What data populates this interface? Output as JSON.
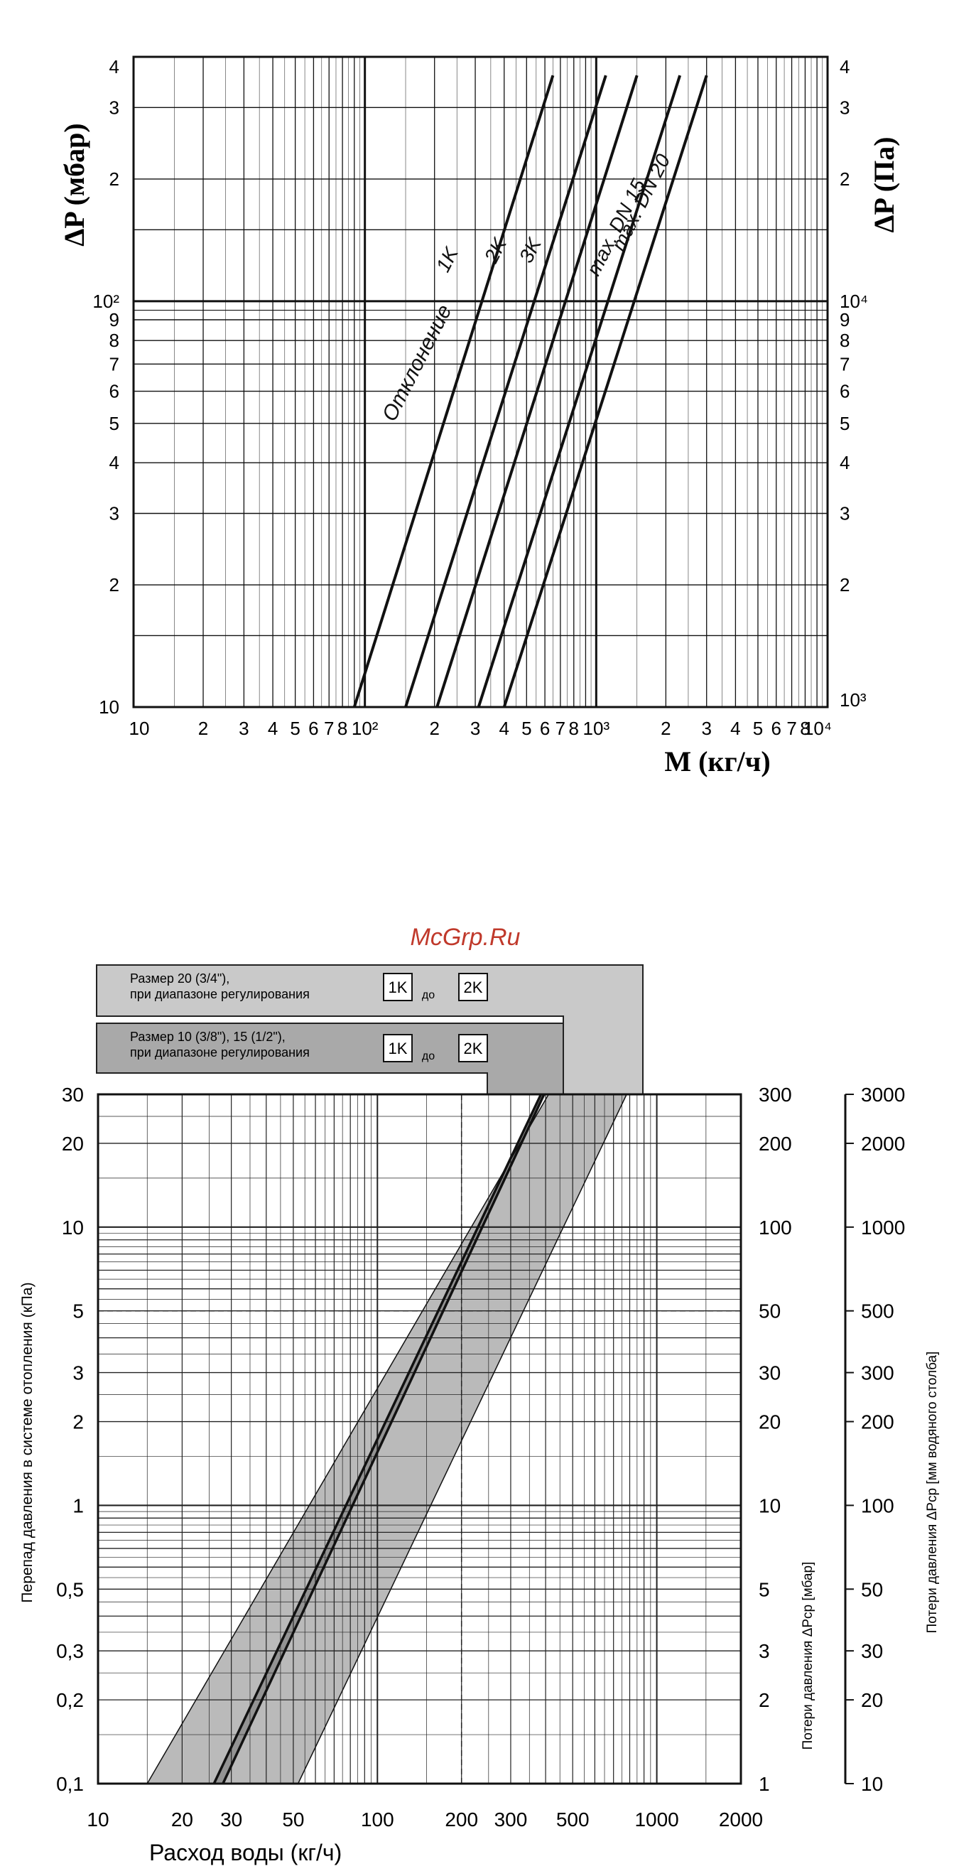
{
  "watermark": "McGrp.Ru",
  "chart_data": [
    {
      "type": "line",
      "scale": "log-log",
      "ylabel_left": "ΔP (мбар)",
      "ylabel_right": "ΔP (Па)",
      "xlabel": "M (кг/ч)",
      "xlim": [
        10,
        10000
      ],
      "ylim_mbar": [
        10,
        400
      ],
      "grid": true,
      "x_ticks": [
        "10",
        "2",
        "3",
        "4",
        "5",
        "6",
        "7",
        "8",
        "10²",
        "2",
        "3",
        "4",
        "5",
        "6",
        "7",
        "8",
        "10³",
        "2",
        "3",
        "4",
        "5",
        "6",
        "7",
        "8",
        "10⁴"
      ],
      "y_ticks_left": [
        "10",
        "2",
        "3",
        "4",
        "5",
        "6",
        "7",
        "8",
        "9",
        "10²",
        "2",
        "3",
        "4"
      ],
      "y_ticks_right": [
        "10³",
        "2",
        "3",
        "4",
        "5",
        "6",
        "7",
        "8",
        "9",
        "10⁴",
        "2",
        "3",
        "4"
      ],
      "group_label": "Отклонение",
      "series": [
        {
          "name": "1K",
          "x": [
            90,
            650
          ],
          "y": [
            10,
            360
          ]
        },
        {
          "name": "2K",
          "x": [
            150,
            1100
          ],
          "y": [
            10,
            360
          ]
        },
        {
          "name": "3K",
          "x": [
            205,
            1500
          ],
          "y": [
            10,
            360
          ]
        },
        {
          "name": "max. DN 15",
          "x": [
            310,
            2300
          ],
          "y": [
            10,
            360
          ]
        },
        {
          "name": "max. DN 20",
          "x": [
            400,
            3000
          ],
          "y": [
            10,
            360
          ]
        }
      ]
    },
    {
      "type": "area",
      "scale": "log-log",
      "xlabel": "Расход воды  (кг/ч)",
      "ylabel_left": "Перепад  давления в системе отопления (кПа)",
      "ylabel_right_1": "Потери давления ΔPср [мбар]",
      "ylabel_right_2": "Потери давления ΔPср [мм водяного столба]",
      "xlim": [
        10,
        2000
      ],
      "ylim_kpa": [
        0.1,
        30
      ],
      "grid": true,
      "x_ticks": [
        "10",
        "20",
        "30",
        "50",
        "100",
        "200",
        "300",
        "500",
        "1000",
        "2000"
      ],
      "y_ticks_left": [
        "0,1",
        "0,2",
        "0,3",
        "0,5",
        "1",
        "2",
        "3",
        "5",
        "10",
        "20",
        "30"
      ],
      "y_ticks_right_1": [
        "1",
        "2",
        "3",
        "5",
        "10",
        "20",
        "30",
        "50",
        "100",
        "200",
        "300"
      ],
      "y_ticks_right_2": [
        "10",
        "20",
        "30",
        "50",
        "100",
        "200",
        "300",
        "500",
        "1000",
        "2000",
        "3000"
      ],
      "box_1": {
        "line1": "Размер 20 (3/4\"),",
        "line2": "при диапазоне регулирования",
        "from": "1K",
        "to_word": "до",
        "to": "2K"
      },
      "box_2": {
        "line1": "Размер 10 (3/8\"),   15 (1/2\"),",
        "line2": "при диапазоне регулирования",
        "from": "1K",
        "to_word": "до",
        "to": "2K"
      },
      "bands": [
        {
          "label": "Размер 20 (3/4\")",
          "lower_edge": {
            "x": [
              15,
              410
            ],
            "y": [
              0.1,
              30
            ]
          },
          "upper_edge": {
            "x": [
              52,
              780
            ],
            "y": [
              0.1,
              30
            ]
          }
        },
        {
          "label": "Размер 10 (3/8\"), 15 (1/2\")",
          "lower_edge": {
            "x": [
              26,
              385
            ],
            "y": [
              0.1,
              30
            ]
          },
          "upper_edge": {
            "x": [
              28,
              395
            ],
            "y": [
              0.1,
              30
            ]
          }
        }
      ]
    }
  ]
}
